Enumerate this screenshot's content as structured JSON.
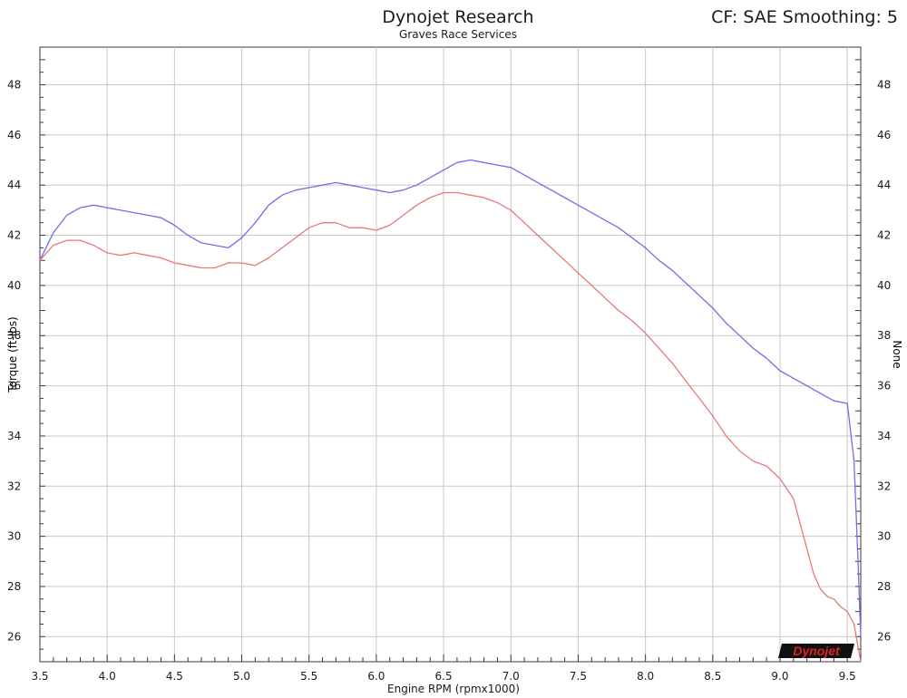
{
  "header": {
    "title": "Dynojet Research",
    "subtitle": "Graves Race Services",
    "cf": "CF: SAE Smoothing: 5"
  },
  "logo": {
    "text": "Dynojet"
  },
  "chart_data": {
    "type": "line",
    "xlabel": "Engine RPM (rpmx1000)",
    "ylabel": "Torque (ft-lbs)",
    "ylabel_right": "None",
    "xlim": [
      3.5,
      9.6
    ],
    "ylim": [
      25,
      49.5
    ],
    "xticks": [
      3.5,
      4.0,
      4.5,
      5.0,
      5.5,
      6.0,
      6.5,
      7.0,
      7.5,
      8.0,
      8.5,
      9.0,
      9.5
    ],
    "xtick_labels": [
      "3.5",
      "4.0",
      "4.5",
      "5.0",
      "5.5",
      "6.0",
      "6.5",
      "7.0",
      "7.5",
      "8.0",
      "8.5",
      "9.0",
      "9.5"
    ],
    "yticks": [
      26,
      28,
      30,
      32,
      34,
      36,
      38,
      40,
      42,
      44,
      46,
      48
    ],
    "ytick_labels": [
      "26",
      "28",
      "30",
      "32",
      "34",
      "36",
      "38",
      "40",
      "42",
      "44",
      "46",
      "48"
    ],
    "grid": true,
    "background": "#ffffff",
    "grid_color": "#c8c8c8",
    "series": [
      {
        "color": "#6f6fe8",
        "x": [
          3.5,
          3.6,
          3.7,
          3.8,
          3.9,
          4.0,
          4.1,
          4.2,
          4.3,
          4.4,
          4.5,
          4.6,
          4.7,
          4.8,
          4.9,
          5.0,
          5.1,
          5.2,
          5.3,
          5.4,
          5.5,
          5.6,
          5.7,
          5.8,
          5.9,
          6.0,
          6.1,
          6.2,
          6.3,
          6.4,
          6.5,
          6.6,
          6.7,
          6.8,
          6.9,
          7.0,
          7.1,
          7.2,
          7.3,
          7.4,
          7.5,
          7.6,
          7.7,
          7.8,
          7.9,
          8.0,
          8.1,
          8.2,
          8.3,
          8.4,
          8.5,
          8.6,
          8.7,
          8.8,
          8.9,
          9.0,
          9.1,
          9.2,
          9.3,
          9.4,
          9.5,
          9.55,
          9.58,
          9.6
        ],
        "y": [
          41.0,
          42.1,
          42.8,
          43.1,
          43.2,
          43.1,
          43.0,
          42.9,
          42.8,
          42.7,
          42.4,
          42.0,
          41.7,
          41.6,
          41.5,
          41.9,
          42.5,
          43.2,
          43.6,
          43.8,
          43.9,
          44.0,
          44.1,
          44.0,
          43.9,
          43.8,
          43.7,
          43.8,
          44.0,
          44.3,
          44.6,
          44.9,
          45.0,
          44.9,
          44.8,
          44.7,
          44.4,
          44.1,
          43.8,
          43.5,
          43.2,
          42.9,
          42.6,
          42.3,
          41.9,
          41.5,
          41.0,
          40.6,
          40.1,
          39.6,
          39.1,
          38.5,
          38.0,
          37.5,
          37.1,
          36.6,
          36.3,
          36.0,
          35.7,
          35.4,
          35.3,
          33.0,
          29.0,
          26.0
        ]
      },
      {
        "color": "#e87878",
        "x": [
          3.5,
          3.6,
          3.7,
          3.8,
          3.9,
          4.0,
          4.1,
          4.2,
          4.3,
          4.4,
          4.5,
          4.6,
          4.7,
          4.8,
          4.9,
          5.0,
          5.1,
          5.2,
          5.3,
          5.4,
          5.5,
          5.6,
          5.7,
          5.8,
          5.9,
          6.0,
          6.1,
          6.2,
          6.3,
          6.4,
          6.5,
          6.6,
          6.7,
          6.8,
          6.9,
          7.0,
          7.1,
          7.2,
          7.3,
          7.4,
          7.5,
          7.6,
          7.7,
          7.8,
          7.9,
          8.0,
          8.1,
          8.2,
          8.3,
          8.4,
          8.5,
          8.6,
          8.7,
          8.8,
          8.9,
          9.0,
          9.1,
          9.15,
          9.2,
          9.25,
          9.3,
          9.35,
          9.4,
          9.45,
          9.5,
          9.55,
          9.58,
          9.6
        ],
        "y": [
          41.0,
          41.6,
          41.8,
          41.8,
          41.6,
          41.3,
          41.2,
          41.3,
          41.2,
          41.1,
          40.9,
          40.8,
          40.7,
          40.7,
          40.9,
          40.9,
          40.8,
          41.1,
          41.5,
          41.9,
          42.3,
          42.5,
          42.5,
          42.3,
          42.3,
          42.2,
          42.4,
          42.8,
          43.2,
          43.5,
          43.7,
          43.7,
          43.6,
          43.5,
          43.3,
          43.0,
          42.5,
          42.0,
          41.5,
          41.0,
          40.5,
          40.0,
          39.5,
          39.0,
          38.6,
          38.1,
          37.5,
          36.9,
          36.2,
          35.5,
          34.8,
          34.0,
          33.4,
          33.0,
          32.8,
          32.3,
          31.5,
          30.5,
          29.5,
          28.5,
          27.9,
          27.6,
          27.5,
          27.2,
          27.0,
          26.5,
          25.6,
          25.0
        ]
      }
    ]
  }
}
